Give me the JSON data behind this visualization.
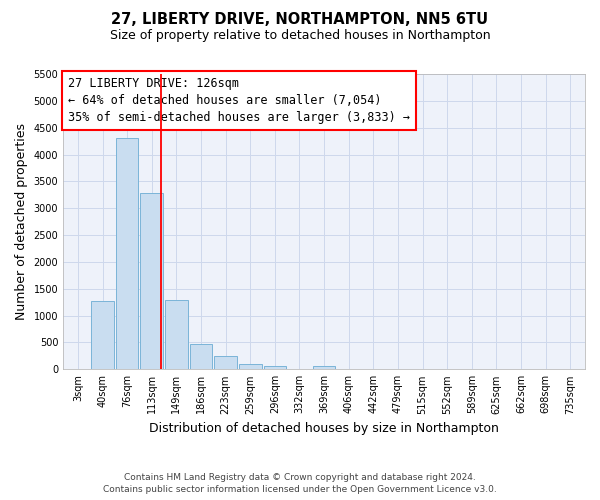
{
  "title": "27, LIBERTY DRIVE, NORTHAMPTON, NN5 6TU",
  "subtitle": "Size of property relative to detached houses in Northampton",
  "xlabel": "Distribution of detached houses by size in Northampton",
  "ylabel": "Number of detached properties",
  "footer_lines": [
    "Contains HM Land Registry data © Crown copyright and database right 2024.",
    "Contains public sector information licensed under the Open Government Licence v3.0."
  ],
  "bar_labels": [
    "3sqm",
    "40sqm",
    "76sqm",
    "113sqm",
    "149sqm",
    "186sqm",
    "223sqm",
    "259sqm",
    "296sqm",
    "332sqm",
    "369sqm",
    "406sqm",
    "442sqm",
    "479sqm",
    "515sqm",
    "552sqm",
    "589sqm",
    "625sqm",
    "662sqm",
    "698sqm",
    "735sqm"
  ],
  "bar_values": [
    0,
    1270,
    4300,
    3290,
    1290,
    480,
    240,
    95,
    65,
    0,
    60,
    0,
    0,
    0,
    0,
    0,
    0,
    0,
    0,
    0,
    0
  ],
  "bar_color": "#c9ddf0",
  "bar_edgecolor": "#7ab4d8",
  "ylim": [
    0,
    5500
  ],
  "yticks": [
    0,
    500,
    1000,
    1500,
    2000,
    2500,
    3000,
    3500,
    4000,
    4500,
    5000,
    5500
  ],
  "property_label": "27 LIBERTY DRIVE: 126sqm",
  "annotation_line1": "← 64% of detached houses are smaller (7,054)",
  "annotation_line2": "35% of semi-detached houses are larger (3,833) →",
  "grid_color": "#cdd8ec",
  "bg_color": "#eef2fa",
  "title_fontsize": 10.5,
  "subtitle_fontsize": 9,
  "axis_label_fontsize": 9,
  "tick_fontsize": 7,
  "annotation_fontsize": 8.5,
  "footer_fontsize": 6.5
}
